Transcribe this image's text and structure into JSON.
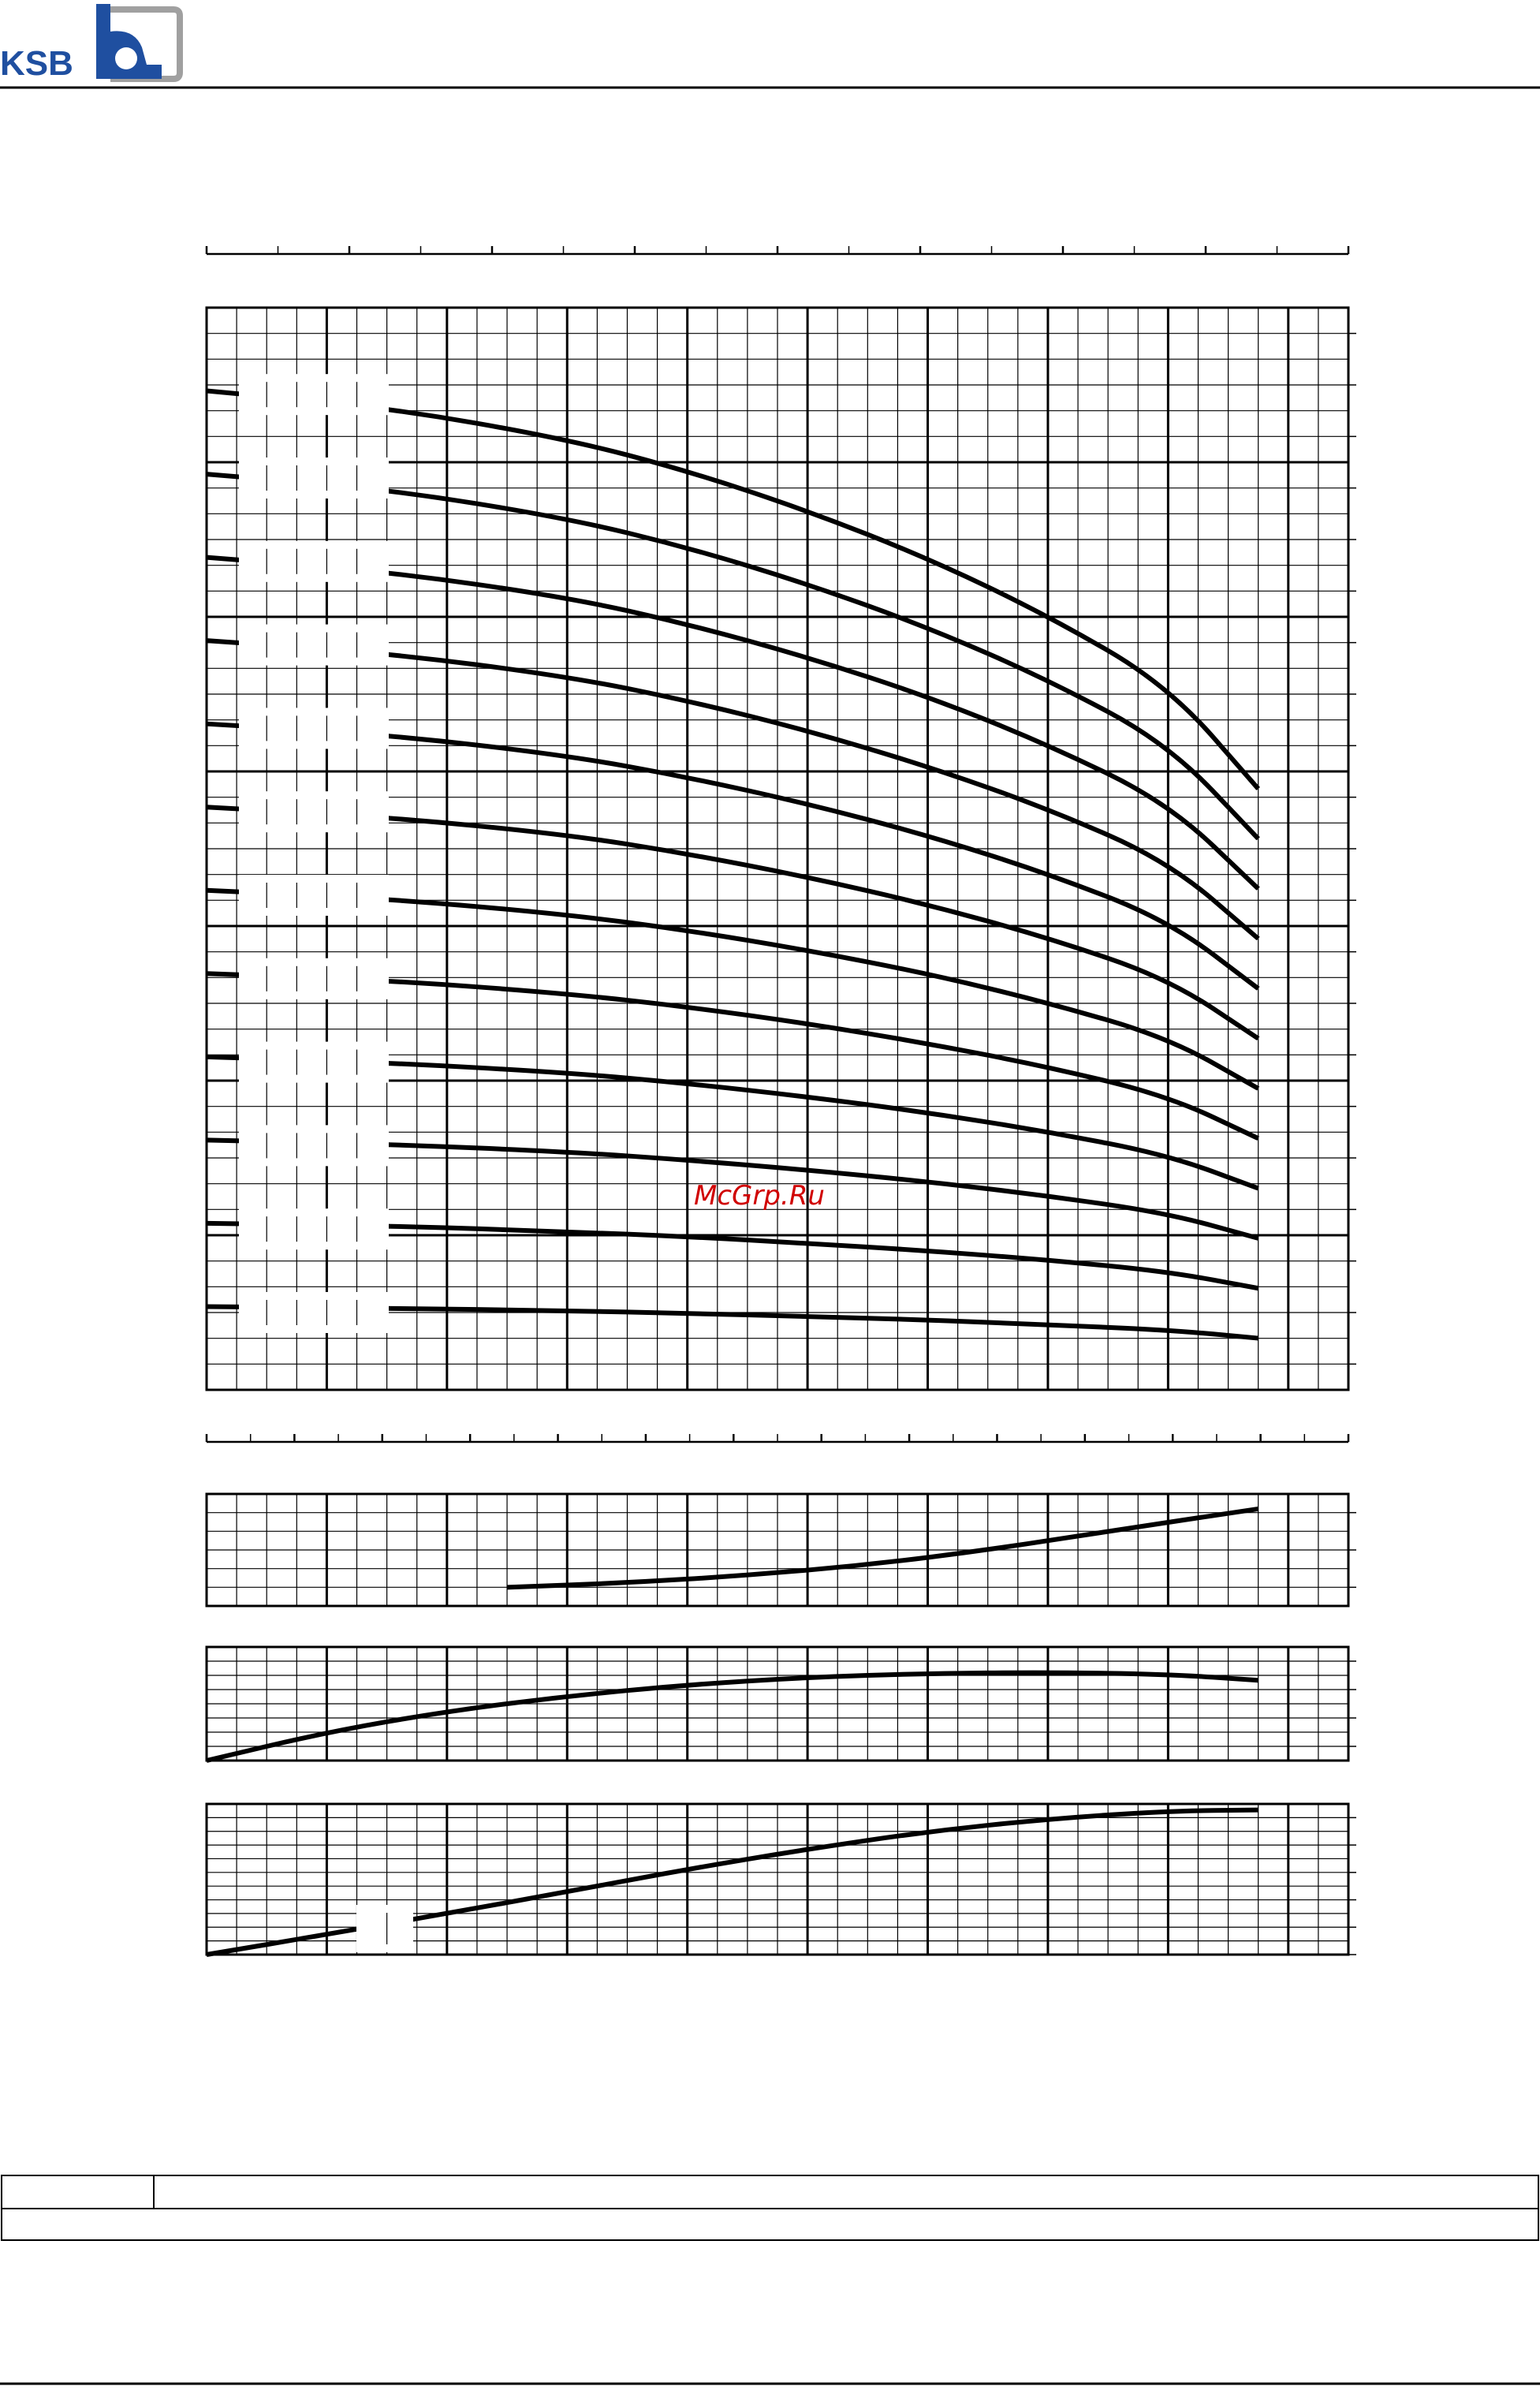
{
  "header": {
    "logo_text": "KSB",
    "brand_color": "#1f4fa0",
    "logo_frame_color": "#a0a0a0"
  },
  "watermark": {
    "text": "McGrp.Ru",
    "color": "#d00000"
  },
  "chart_data": [
    {
      "type": "line",
      "name_role": "head-curves",
      "xlim": [
        0,
        19
      ],
      "ylim": [
        0,
        13
      ],
      "grid": true,
      "series": [
        {
          "x": [
            0,
            3,
            6,
            8,
            10,
            12,
            14,
            16,
            17.5
          ],
          "y": [
            1.0,
            0.98,
            0.95,
            0.92,
            0.88,
            0.84,
            0.78,
            0.72,
            0.62
          ]
        },
        {
          "x": [
            0,
            3,
            6,
            8,
            10,
            12,
            14,
            16,
            17.5
          ],
          "y": [
            2.0,
            1.97,
            1.9,
            1.84,
            1.76,
            1.67,
            1.56,
            1.42,
            1.22
          ]
        },
        {
          "x": [
            0,
            3,
            6,
            8,
            10,
            12,
            14,
            16,
            17.5
          ],
          "y": [
            3.0,
            2.95,
            2.86,
            2.76,
            2.64,
            2.5,
            2.33,
            2.12,
            1.82
          ]
        },
        {
          "x": [
            0,
            3,
            6,
            8,
            10,
            12,
            14,
            16,
            17.5
          ],
          "y": [
            4.0,
            3.93,
            3.81,
            3.68,
            3.52,
            3.33,
            3.1,
            2.82,
            2.42
          ]
        },
        {
          "x": [
            0,
            3,
            6,
            8,
            10,
            12,
            14,
            16,
            17.5
          ],
          "y": [
            5.0,
            4.92,
            4.76,
            4.6,
            4.4,
            4.16,
            3.88,
            3.53,
            3.02
          ]
        },
        {
          "x": [
            0,
            3,
            6,
            8,
            10,
            12,
            14,
            16,
            17.5
          ],
          "y": [
            6.0,
            5.9,
            5.71,
            5.52,
            5.28,
            5.0,
            4.65,
            4.23,
            3.62
          ]
        },
        {
          "x": [
            0,
            3,
            6,
            8,
            10,
            12,
            14,
            16,
            17.5
          ],
          "y": [
            7.0,
            6.88,
            6.67,
            6.44,
            6.16,
            5.83,
            5.43,
            4.94,
            4.22
          ]
        },
        {
          "x": [
            0,
            3,
            6,
            8,
            10,
            12,
            14,
            16,
            17.5
          ],
          "y": [
            8.0,
            7.87,
            7.62,
            7.36,
            7.04,
            6.66,
            6.2,
            5.64,
            4.82
          ]
        },
        {
          "x": [
            0,
            3,
            6,
            8,
            10,
            12,
            14,
            16,
            17.5
          ],
          "y": [
            9.0,
            8.85,
            8.57,
            8.28,
            7.92,
            7.49,
            6.98,
            6.35,
            5.42
          ]
        },
        {
          "x": [
            0,
            3,
            6,
            8,
            10,
            12,
            14,
            16,
            17.5
          ],
          "y": [
            10.0,
            9.83,
            9.52,
            9.2,
            8.8,
            8.33,
            7.75,
            7.05,
            6.02
          ]
        },
        {
          "x": [
            0,
            3,
            6,
            8,
            10,
            12,
            14,
            16,
            17.5
          ],
          "y": [
            11.0,
            10.82,
            10.47,
            10.12,
            9.68,
            9.16,
            8.53,
            7.76,
            6.62
          ]
        },
        {
          "x": [
            0,
            3,
            6,
            8,
            10,
            12,
            14,
            16,
            17.5
          ],
          "y": [
            12.0,
            11.8,
            11.42,
            11.04,
            10.56,
            9.99,
            9.3,
            8.46,
            7.22
          ]
        }
      ]
    },
    {
      "type": "line",
      "name_role": "npsh-curve",
      "xlim": [
        0,
        19
      ],
      "ylim": [
        0,
        3
      ],
      "grid": true,
      "series": [
        {
          "x": [
            5,
            7,
            9,
            11,
            13,
            15,
            17.5
          ],
          "y": [
            0.5,
            0.62,
            0.82,
            1.1,
            1.5,
            2.0,
            2.6
          ]
        }
      ]
    },
    {
      "type": "line",
      "name_role": "efficiency-curve",
      "xlim": [
        0,
        19
      ],
      "ylim": [
        0,
        3
      ],
      "grid": true,
      "series": [
        {
          "x": [
            0,
            2,
            4,
            6,
            8,
            10,
            12,
            14,
            16,
            17.5
          ],
          "y": [
            0.0,
            0.75,
            1.3,
            1.7,
            2.0,
            2.2,
            2.3,
            2.33,
            2.28,
            2.12
          ]
        }
      ]
    },
    {
      "type": "line",
      "name_role": "power-curve",
      "xlim": [
        0,
        19
      ],
      "ylim": [
        0,
        3
      ],
      "grid": true,
      "series": [
        {
          "x": [
            0,
            2,
            4,
            6,
            8,
            10,
            12,
            14,
            16,
            17.5
          ],
          "y": [
            0.0,
            0.4,
            0.82,
            1.25,
            1.7,
            2.1,
            2.45,
            2.7,
            2.86,
            2.88
          ]
        }
      ]
    }
  ]
}
